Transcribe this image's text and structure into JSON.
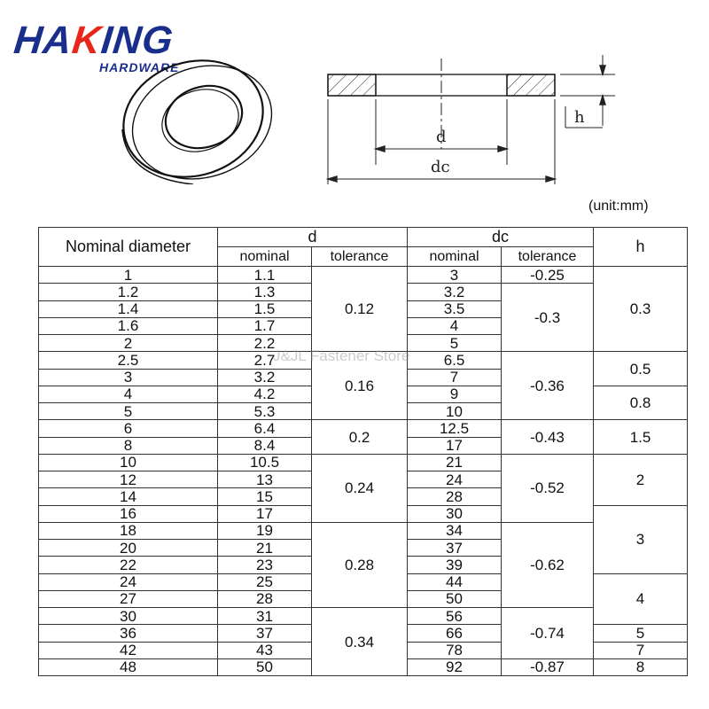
{
  "logo": {
    "word_1": "HA",
    "word_accent": "K",
    "word_2": "ING",
    "sub": "HARDWARE"
  },
  "drawing_labels": {
    "d": "d",
    "dc": "dc",
    "h": "h"
  },
  "unit_note": "(unit:mm)",
  "watermark": "J&JL Fastener Store",
  "table": {
    "headers": {
      "nominal_diameter": "Nominal diameter",
      "d": "d",
      "dc": "dc",
      "h": "h",
      "nominal": "nominal",
      "tolerance": "tolerance"
    },
    "rows": [
      [
        "1",
        "1.1",
        "3"
      ],
      [
        "1.2",
        "1.3",
        "3.2"
      ],
      [
        "1.4",
        "1.5",
        "3.5"
      ],
      [
        "1.6",
        "1.7",
        "4"
      ],
      [
        "2",
        "2.2",
        "5"
      ],
      [
        "2.5",
        "2.7",
        "6.5"
      ],
      [
        "3",
        "3.2",
        "7"
      ],
      [
        "4",
        "4.2",
        "9"
      ],
      [
        "5",
        "5.3",
        "10"
      ],
      [
        "6",
        "6.4",
        "12.5"
      ],
      [
        "8",
        "8.4",
        "17"
      ],
      [
        "10",
        "10.5",
        "21"
      ],
      [
        "12",
        "13",
        "24"
      ],
      [
        "14",
        "15",
        "28"
      ],
      [
        "16",
        "17",
        "30"
      ],
      [
        "18",
        "19",
        "34"
      ],
      [
        "20",
        "21",
        "37"
      ],
      [
        "22",
        "23",
        "39"
      ],
      [
        "24",
        "25",
        "44"
      ],
      [
        "27",
        "28",
        "50"
      ],
      [
        "30",
        "31",
        "56"
      ],
      [
        "36",
        "37",
        "66"
      ],
      [
        "42",
        "43",
        "78"
      ],
      [
        "48",
        "50",
        "92"
      ]
    ],
    "d_tolerance": [
      "0.12",
      "0.16",
      "0.2",
      "0.24",
      "0.28",
      "0.34"
    ],
    "dc_tolerance": [
      "-0.25",
      "-0.3",
      "-0.36",
      "-0.43",
      "-0.52",
      "-0.62",
      "-0.74",
      "-0.87"
    ],
    "h": [
      "0.3",
      "0.5",
      "0.8",
      "1.5",
      "2",
      "3",
      "4",
      "5",
      "7",
      "8"
    ]
  }
}
